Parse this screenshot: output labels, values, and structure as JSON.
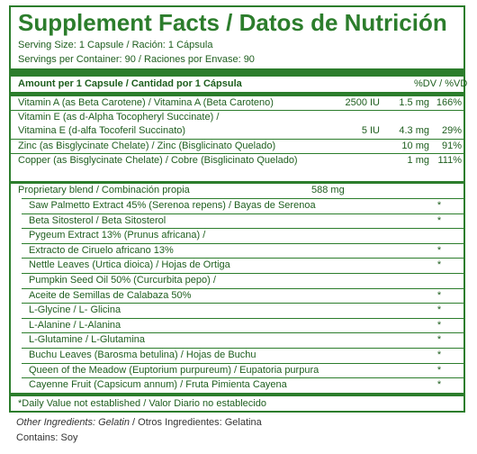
{
  "colors": {
    "accent": "#2c7d2c",
    "text": "#1e5e1e"
  },
  "title": "Supplement Facts / Datos de Nutrición",
  "serving_size": "Serving Size: 1 Capsule / Ración: 1 Cápsula",
  "servings_per_container": "Servings per Container: 90 / Raciones por Envase: 90",
  "header": {
    "amount": "Amount per 1 Capsule / Cantidad por 1 Cápsula",
    "dv": "%DV / %VD"
  },
  "nutrients": [
    {
      "name": "Vitamin A (as Beta Carotene) / Vitamina A (Beta Caroteno)",
      "iu": "2500 IU",
      "mg": "1.5 mg",
      "dv": "166%"
    },
    {
      "name": "Vitamin E (as d-Alpha Tocopheryl Succinate) /",
      "iu": "",
      "mg": "",
      "dv": ""
    },
    {
      "name": "Vitamina E (d-alfa Tocoferil Succinato)",
      "iu": "5 IU",
      "mg": "4.3 mg",
      "dv": "29%"
    },
    {
      "name": "Zinc (as Bisglycinate Chelate) / Zinc (Bisglicinato Quelado)",
      "iu": "",
      "mg": "10 mg",
      "dv": "91%"
    },
    {
      "name": "Copper (as Bisglycinate Chelate) / Cobre (Bisglicinato Quelado)",
      "iu": "",
      "mg": "1 mg",
      "dv": "111%"
    }
  ],
  "blend": {
    "name": "Proprietary blend / Combinación propia",
    "amount": "588 mg"
  },
  "blend_items": [
    {
      "name": "Saw Palmetto Extract 45% (Serenoa repens) / Bayas de Serenoa",
      "dv": "*"
    },
    {
      "name": "Beta Sitosterol / Beta Sitosterol",
      "dv": "*"
    },
    {
      "name": "Pygeum Extract 13% (Prunus africana) /",
      "dv": ""
    },
    {
      "name": "Extracto de Ciruelo africano 13%",
      "dv": "*"
    },
    {
      "name": "Nettle Leaves (Urtica dioica) / Hojas de Ortiga",
      "dv": "*"
    },
    {
      "name": "Pumpkin Seed Oil 50% (Curcurbita pepo) /",
      "dv": ""
    },
    {
      "name": "Aceite de Semillas de Calabaza 50%",
      "dv": "*"
    },
    {
      "name": "L-Glycine / L- Glicina",
      "dv": "*"
    },
    {
      "name": "L-Alanine / L-Alanina",
      "dv": "*"
    },
    {
      "name": "L-Glutamine / L-Glutamina",
      "dv": "*"
    },
    {
      "name": "Buchu Leaves (Barosma betulina) / Hojas de Buchu",
      "dv": "*"
    },
    {
      "name": "Queen of the Meadow (Euptorium purpureum) / Eupatoria purpura",
      "dv": "*"
    },
    {
      "name": "Cayenne Fruit (Capsicum annum) / Fruta Pimienta Cayena",
      "dv": "*"
    }
  ],
  "footnote": "*Daily Value not established / Valor Diario no establecido",
  "other_ingredients_label": "Other Ingredients: Gelatin",
  "other_ingredients_rest": " / Otros Ingredientes: Gelatina",
  "contains": "Contains: Soy"
}
